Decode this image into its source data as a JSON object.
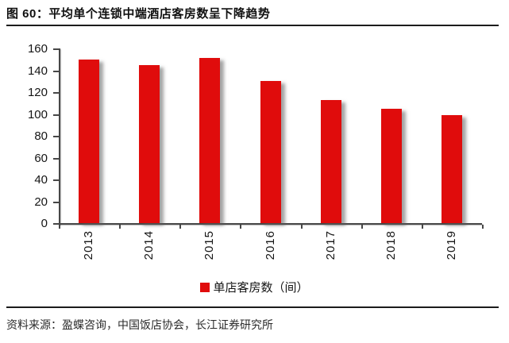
{
  "title": "图 60：平均单个连锁中端酒店客房数呈下降趋势",
  "source": "资料来源：盈蝶咨询，中国饭店协会，长江证券研究所",
  "legend": {
    "label": "单店客房数（间）"
  },
  "colors": {
    "bar": "#e00c0c",
    "axis": "#474747",
    "text": "#151515"
  },
  "chart_data": {
    "type": "bar",
    "title": "图 60：平均单个连锁中端酒店客房数呈下降趋势",
    "categories": [
      "2013",
      "2014",
      "2015",
      "2016",
      "2017",
      "2018",
      "2019"
    ],
    "series": [
      {
        "name": "单店客房数（间）",
        "values": [
          150,
          145,
          151,
          130,
          113,
          105,
          99
        ]
      }
    ],
    "xlabel": "",
    "ylabel": "",
    "ylim": [
      0,
      160
    ],
    "ytick_step": 20,
    "yticks": [
      0,
      20,
      40,
      60,
      80,
      100,
      120,
      140,
      160
    ],
    "grid": false,
    "legend_position": "bottom-center",
    "bar_color": "#e00c0c"
  }
}
